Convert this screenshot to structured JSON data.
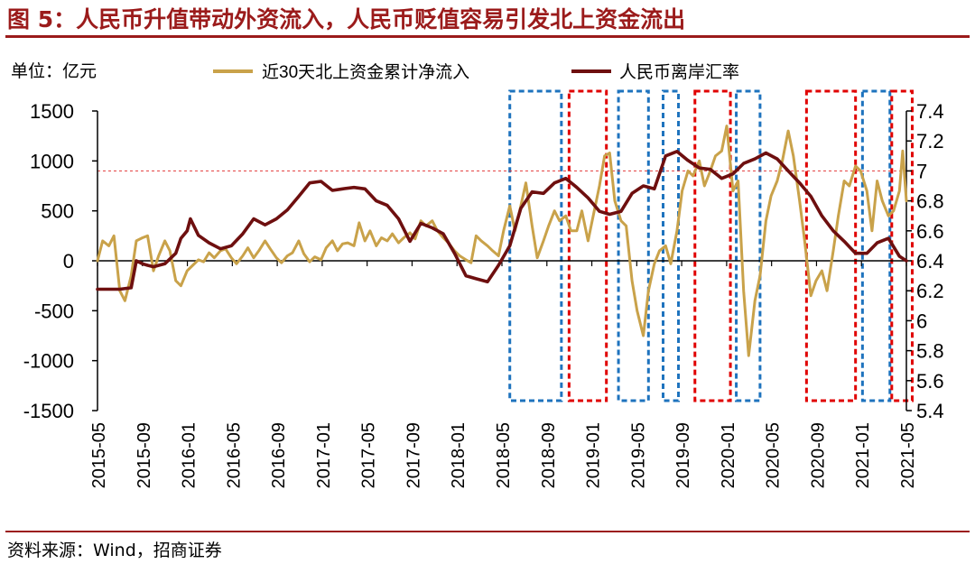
{
  "header": {
    "title": "图 5：人民币升值带动外资流入，人民币贬值容易引发北上资金流出"
  },
  "footer": {
    "source": "资料来源：Wind，招商证券"
  },
  "chart_data": {
    "type": "line",
    "unit_label": "单位：亿元",
    "x_ticks": [
      "2015-05",
      "2015-09",
      "2016-01",
      "2016-05",
      "2016-09",
      "2017-01",
      "2017-05",
      "2017-09",
      "2018-01",
      "2018-05",
      "2018-09",
      "2019-01",
      "2019-05",
      "2019-09",
      "2020-01",
      "2020-05",
      "2020-09",
      "2021-01",
      "2021-05"
    ],
    "left_axis": {
      "ylim": [
        -1500,
        1500
      ],
      "ticks": [
        "1500",
        "1000",
        "500",
        "0",
        "-500",
        "-1000",
        "-1500"
      ]
    },
    "right_axis": {
      "ylim": [
        5.4,
        7.4
      ],
      "ticks": [
        "7.4",
        "7.2",
        "7",
        "6.8",
        "6.6",
        "6.4",
        "6.2",
        "6",
        "5.8",
        "5.6",
        "5.4"
      ]
    },
    "reference_line": {
      "axis": "right",
      "value": 7.0,
      "color": "#e23b3b"
    },
    "series": [
      {
        "name": "近30天北上资金累计净流入",
        "axis": "left",
        "color": "#c9a24a",
        "points": [
          [
            "2015-05-01",
            0
          ],
          [
            "2015-05-15",
            200
          ],
          [
            "2015-06-01",
            150
          ],
          [
            "2015-06-15",
            250
          ],
          [
            "2015-07-01",
            -300
          ],
          [
            "2015-07-15",
            -400
          ],
          [
            "2015-08-01",
            -150
          ],
          [
            "2015-08-15",
            200
          ],
          [
            "2015-09-01",
            230
          ],
          [
            "2015-09-15",
            250
          ],
          [
            "2015-10-01",
            -100
          ],
          [
            "2015-10-15",
            50
          ],
          [
            "2015-11-01",
            200
          ],
          [
            "2015-11-15",
            100
          ],
          [
            "2015-12-01",
            -200
          ],
          [
            "2015-12-15",
            -250
          ],
          [
            "2016-01-01",
            -100
          ],
          [
            "2016-01-15",
            -50
          ],
          [
            "2016-02-01",
            10
          ],
          [
            "2016-02-15",
            -10
          ],
          [
            "2016-03-01",
            80
          ],
          [
            "2016-03-15",
            30
          ],
          [
            "2016-04-01",
            100
          ],
          [
            "2016-04-15",
            120
          ],
          [
            "2016-05-01",
            30
          ],
          [
            "2016-05-15",
            -30
          ],
          [
            "2016-06-01",
            50
          ],
          [
            "2016-06-15",
            130
          ],
          [
            "2016-07-01",
            30
          ],
          [
            "2016-07-15",
            100
          ],
          [
            "2016-08-01",
            200
          ],
          [
            "2016-08-15",
            120
          ],
          [
            "2016-09-01",
            30
          ],
          [
            "2016-09-15",
            -20
          ],
          [
            "2016-10-01",
            50
          ],
          [
            "2016-10-15",
            80
          ],
          [
            "2016-11-01",
            200
          ],
          [
            "2016-11-15",
            70
          ],
          [
            "2016-12-01",
            -10
          ],
          [
            "2016-12-15",
            40
          ],
          [
            "2017-01-01",
            10
          ],
          [
            "2017-01-15",
            130
          ],
          [
            "2017-02-01",
            200
          ],
          [
            "2017-02-15",
            100
          ],
          [
            "2017-03-01",
            170
          ],
          [
            "2017-03-15",
            180
          ],
          [
            "2017-04-01",
            150
          ],
          [
            "2017-04-15",
            380
          ],
          [
            "2017-05-01",
            200
          ],
          [
            "2017-05-15",
            300
          ],
          [
            "2017-06-01",
            150
          ],
          [
            "2017-06-15",
            230
          ],
          [
            "2017-07-01",
            200
          ],
          [
            "2017-07-15",
            270
          ],
          [
            "2017-08-01",
            180
          ],
          [
            "2017-08-15",
            230
          ],
          [
            "2017-09-01",
            280
          ],
          [
            "2017-09-15",
            220
          ],
          [
            "2017-10-01",
            400
          ],
          [
            "2017-10-15",
            350
          ],
          [
            "2017-11-01",
            400
          ],
          [
            "2017-11-15",
            300
          ],
          [
            "2017-12-01",
            230
          ],
          [
            "2017-12-15",
            180
          ],
          [
            "2018-01-01",
            100
          ],
          [
            "2018-01-15",
            50
          ],
          [
            "2018-02-01",
            10
          ],
          [
            "2018-02-15",
            -20
          ],
          [
            "2018-03-01",
            250
          ],
          [
            "2018-03-15",
            200
          ],
          [
            "2018-04-01",
            150
          ],
          [
            "2018-04-15",
            100
          ],
          [
            "2018-05-01",
            50
          ],
          [
            "2018-05-15",
            300
          ],
          [
            "2018-06-01",
            550
          ],
          [
            "2018-06-15",
            300
          ],
          [
            "2018-07-01",
            550
          ],
          [
            "2018-07-15",
            780
          ],
          [
            "2018-08-01",
            350
          ],
          [
            "2018-08-15",
            30
          ],
          [
            "2018-09-01",
            200
          ],
          [
            "2018-09-15",
            350
          ],
          [
            "2018-10-01",
            500
          ],
          [
            "2018-10-15",
            400
          ],
          [
            "2018-11-01",
            450
          ],
          [
            "2018-11-15",
            300
          ],
          [
            "2018-12-01",
            300
          ],
          [
            "2018-12-15",
            500
          ],
          [
            "2019-01-01",
            200
          ],
          [
            "2019-01-15",
            450
          ],
          [
            "2019-02-01",
            750
          ],
          [
            "2019-02-15",
            1050
          ],
          [
            "2019-03-01",
            1080
          ],
          [
            "2019-03-15",
            600
          ],
          [
            "2019-04-01",
            400
          ],
          [
            "2019-04-15",
            350
          ],
          [
            "2019-05-01",
            -200
          ],
          [
            "2019-05-15",
            -500
          ],
          [
            "2019-06-01",
            -750
          ],
          [
            "2019-06-15",
            -300
          ],
          [
            "2019-07-01",
            -30
          ],
          [
            "2019-07-15",
            100
          ],
          [
            "2019-08-01",
            150
          ],
          [
            "2019-08-15",
            -30
          ],
          [
            "2019-09-01",
            300
          ],
          [
            "2019-09-15",
            700
          ],
          [
            "2019-10-01",
            900
          ],
          [
            "2019-10-15",
            850
          ],
          [
            "2019-11-01",
            1000
          ],
          [
            "2019-11-15",
            750
          ],
          [
            "2019-12-01",
            900
          ],
          [
            "2019-12-15",
            1050
          ],
          [
            "2020-01-01",
            1100
          ],
          [
            "2020-01-15",
            1350
          ],
          [
            "2020-02-01",
            700
          ],
          [
            "2020-02-15",
            800
          ],
          [
            "2020-03-01",
            -300
          ],
          [
            "2020-03-15",
            -950
          ],
          [
            "2020-04-01",
            -400
          ],
          [
            "2020-04-15",
            -150
          ],
          [
            "2020-05-01",
            400
          ],
          [
            "2020-05-15",
            650
          ],
          [
            "2020-06-01",
            800
          ],
          [
            "2020-06-15",
            1000
          ],
          [
            "2020-07-01",
            1300
          ],
          [
            "2020-07-15",
            1050
          ],
          [
            "2020-08-01",
            600
          ],
          [
            "2020-08-15",
            200
          ],
          [
            "2020-09-01",
            -350
          ],
          [
            "2020-09-15",
            -200
          ],
          [
            "2020-10-01",
            -100
          ],
          [
            "2020-10-15",
            -300
          ],
          [
            "2020-11-01",
            100
          ],
          [
            "2020-11-15",
            450
          ],
          [
            "2020-12-01",
            800
          ],
          [
            "2020-12-15",
            750
          ],
          [
            "2021-01-01",
            950
          ],
          [
            "2021-01-15",
            900
          ],
          [
            "2021-02-01",
            700
          ],
          [
            "2021-02-15",
            300
          ],
          [
            "2021-03-01",
            800
          ],
          [
            "2021-03-15",
            600
          ],
          [
            "2021-04-01",
            450
          ],
          [
            "2021-04-15",
            500
          ],
          [
            "2021-05-01",
            700
          ],
          [
            "2021-05-10",
            1100
          ],
          [
            "2021-05-20",
            600
          ]
        ]
      },
      {
        "name": "人民币离岸汇率",
        "axis": "right",
        "color": "#6e0f0f",
        "points": [
          [
            "2015-05-01",
            6.21
          ],
          [
            "2015-06-01",
            6.21
          ],
          [
            "2015-07-01",
            6.21
          ],
          [
            "2015-08-01",
            6.22
          ],
          [
            "2015-08-15",
            6.4
          ],
          [
            "2015-09-01",
            6.38
          ],
          [
            "2015-09-15",
            6.37
          ],
          [
            "2015-10-01",
            6.36
          ],
          [
            "2015-11-01",
            6.38
          ],
          [
            "2015-12-01",
            6.45
          ],
          [
            "2015-12-15",
            6.55
          ],
          [
            "2016-01-01",
            6.6
          ],
          [
            "2016-01-10",
            6.68
          ],
          [
            "2016-02-01",
            6.57
          ],
          [
            "2016-03-01",
            6.52
          ],
          [
            "2016-04-01",
            6.48
          ],
          [
            "2016-05-01",
            6.5
          ],
          [
            "2016-06-01",
            6.58
          ],
          [
            "2016-07-01",
            6.68
          ],
          [
            "2016-08-01",
            6.64
          ],
          [
            "2016-09-01",
            6.68
          ],
          [
            "2016-10-01",
            6.74
          ],
          [
            "2016-11-01",
            6.83
          ],
          [
            "2016-12-01",
            6.92
          ],
          [
            "2017-01-01",
            6.93
          ],
          [
            "2017-02-01",
            6.87
          ],
          [
            "2017-03-01",
            6.88
          ],
          [
            "2017-04-01",
            6.89
          ],
          [
            "2017-05-01",
            6.88
          ],
          [
            "2017-06-01",
            6.8
          ],
          [
            "2017-07-01",
            6.77
          ],
          [
            "2017-08-01",
            6.68
          ],
          [
            "2017-09-01",
            6.53
          ],
          [
            "2017-10-01",
            6.65
          ],
          [
            "2017-11-01",
            6.62
          ],
          [
            "2017-12-01",
            6.58
          ],
          [
            "2018-01-01",
            6.45
          ],
          [
            "2018-02-01",
            6.3
          ],
          [
            "2018-03-01",
            6.28
          ],
          [
            "2018-04-01",
            6.26
          ],
          [
            "2018-05-01",
            6.37
          ],
          [
            "2018-06-01",
            6.5
          ],
          [
            "2018-07-01",
            6.75
          ],
          [
            "2018-08-01",
            6.86
          ],
          [
            "2018-09-01",
            6.85
          ],
          [
            "2018-10-01",
            6.92
          ],
          [
            "2018-11-01",
            6.95
          ],
          [
            "2018-12-01",
            6.89
          ],
          [
            "2019-01-01",
            6.82
          ],
          [
            "2019-02-01",
            6.73
          ],
          [
            "2019-03-01",
            6.71
          ],
          [
            "2019-04-01",
            6.73
          ],
          [
            "2019-05-01",
            6.85
          ],
          [
            "2019-06-01",
            6.9
          ],
          [
            "2019-07-01",
            6.88
          ],
          [
            "2019-08-01",
            7.1
          ],
          [
            "2019-09-01",
            7.13
          ],
          [
            "2019-10-01",
            7.07
          ],
          [
            "2019-11-01",
            7.02
          ],
          [
            "2019-12-01",
            7.01
          ],
          [
            "2020-01-01",
            6.95
          ],
          [
            "2020-02-01",
            6.98
          ],
          [
            "2020-03-01",
            7.05
          ],
          [
            "2020-04-01",
            7.08
          ],
          [
            "2020-05-01",
            7.12
          ],
          [
            "2020-06-01",
            7.08
          ],
          [
            "2020-07-01",
            7.0
          ],
          [
            "2020-08-01",
            6.92
          ],
          [
            "2020-09-01",
            6.83
          ],
          [
            "2020-10-01",
            6.7
          ],
          [
            "2020-11-01",
            6.6
          ],
          [
            "2020-12-01",
            6.53
          ],
          [
            "2021-01-01",
            6.45
          ],
          [
            "2021-02-01",
            6.45
          ],
          [
            "2021-03-01",
            6.52
          ],
          [
            "2021-04-01",
            6.55
          ],
          [
            "2021-05-01",
            6.43
          ],
          [
            "2021-05-20",
            6.4
          ]
        ]
      }
    ],
    "highlight_boxes": [
      {
        "from": "2018-06-01",
        "to": "2018-10-20",
        "color": "#1e73be",
        "meaning": "appreciation"
      },
      {
        "from": "2018-11-10",
        "to": "2019-02-20",
        "color": "#e00000",
        "meaning": "depreciation"
      },
      {
        "from": "2019-03-25",
        "to": "2019-06-15",
        "color": "#1e73be",
        "meaning": "appreciation"
      },
      {
        "from": "2019-07-25",
        "to": "2019-09-05",
        "color": "#1e73be",
        "meaning": "appreciation"
      },
      {
        "from": "2019-10-20",
        "to": "2020-01-25",
        "color": "#e00000",
        "meaning": "depreciation"
      },
      {
        "from": "2020-02-10",
        "to": "2020-04-15",
        "color": "#1e73be",
        "meaning": "appreciation"
      },
      {
        "from": "2020-08-20",
        "to": "2021-01-01",
        "color": "#e00000",
        "meaning": "depreciation"
      },
      {
        "from": "2021-01-20",
        "to": "2021-04-05",
        "color": "#1e73be",
        "meaning": "appreciation"
      },
      {
        "from": "2021-04-10",
        "to": "2021-06-05",
        "color": "#e00000",
        "meaning": "depreciation"
      }
    ]
  }
}
